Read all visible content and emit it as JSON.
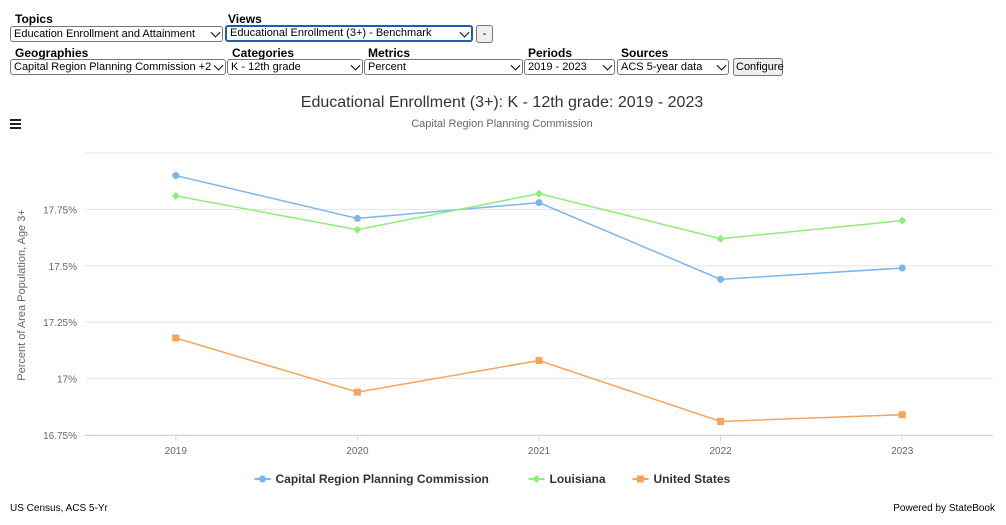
{
  "controls": {
    "topics_label": "Topics",
    "topics_value": "Education Enrollment and Attainment",
    "views_label": "Views",
    "views_value": "Educational Enrollment (3+) - Benchmark",
    "minus_button": "-",
    "geographies_label": "Geographies",
    "geographies_value": "Capital Region Planning Commission +2",
    "categories_label": "Categories",
    "categories_value": "K - 12th grade",
    "metrics_label": "Metrics",
    "metrics_value": "Percent",
    "periods_label": "Periods",
    "periods_value": "2019 - 2023",
    "sources_label": "Sources",
    "sources_value": "ACS 5-year data",
    "configure_button": "Configure"
  },
  "chart_data": {
    "type": "line",
    "title": "Educational Enrollment (3+): K - 12th grade: 2019 - 2023",
    "subtitle": "Capital Region Planning Commission",
    "ylabel": "Percent of Area Population, Age 3+",
    "xlabel": "",
    "categories": [
      "2019",
      "2020",
      "2021",
      "2022",
      "2023"
    ],
    "ylim": [
      16.75,
      18.0
    ],
    "yticks": [
      16.75,
      17.0,
      17.25,
      17.5,
      17.75
    ],
    "ytick_labels": [
      "16.75%",
      "17%",
      "17.25%",
      "17.5%",
      "17.75%"
    ],
    "grid": true,
    "legend_position": "bottom",
    "series": [
      {
        "name": "Capital Region Planning Commission",
        "color": "#7cb5ec",
        "marker": "circle",
        "values": [
          17.9,
          17.71,
          17.78,
          17.44,
          17.49
        ]
      },
      {
        "name": "Louisiana",
        "color": "#90ed7d",
        "marker": "diamond",
        "values": [
          17.81,
          17.66,
          17.82,
          17.62,
          17.7
        ]
      },
      {
        "name": "United States",
        "color": "#f7a35c",
        "marker": "square",
        "values": [
          17.18,
          16.94,
          17.08,
          16.81,
          16.84
        ]
      }
    ]
  },
  "footer": {
    "source": "US Census, ACS 5-Yr",
    "credit": "Powered by StateBook"
  }
}
